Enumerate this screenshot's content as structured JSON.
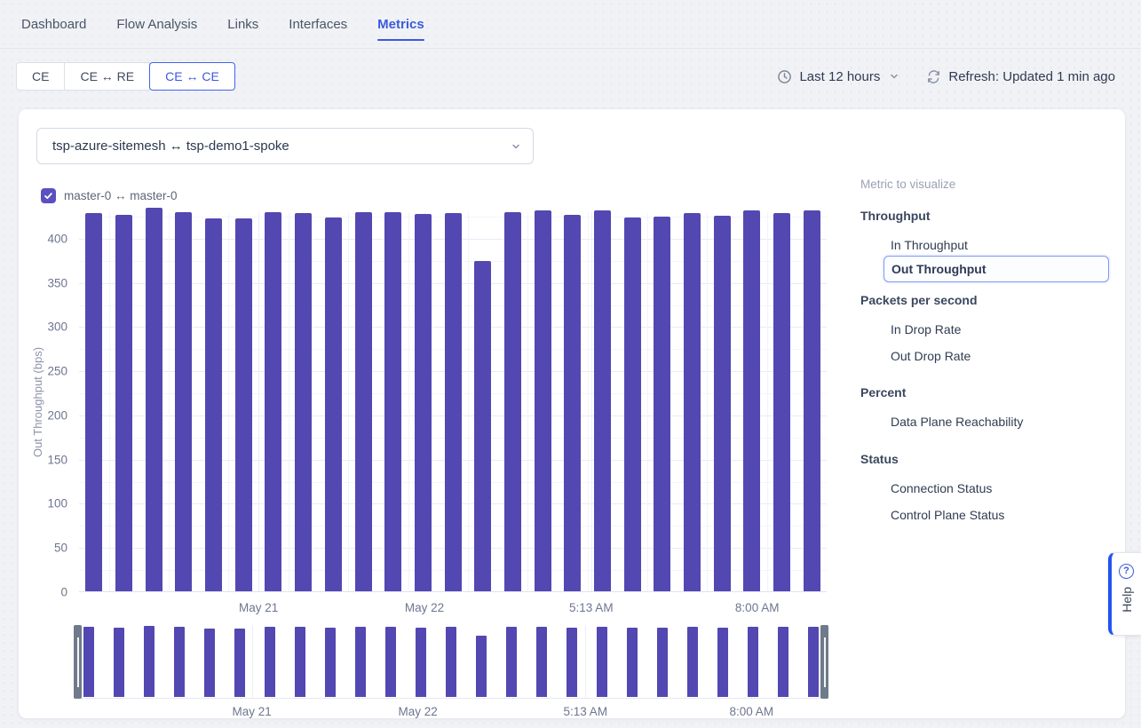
{
  "nav": {
    "tabs": [
      {
        "label": "Dashboard"
      },
      {
        "label": "Flow Analysis"
      },
      {
        "label": "Links"
      },
      {
        "label": "Interfaces"
      },
      {
        "label": "Metrics"
      }
    ],
    "active_index": 4
  },
  "filters": {
    "segments": [
      "CE",
      "CE ↔ RE",
      "CE ↔ CE"
    ],
    "selected_segment_index": 2,
    "time_range": "Last 12 hours",
    "refresh_label": "Refresh: Updated 1 min ago"
  },
  "panel": {
    "selector_value": "tsp-azure-sitemesh ↔ tsp-demo1-spoke",
    "legend": {
      "label": "master-0 ↔ master-0",
      "checked": true
    }
  },
  "sidebar": {
    "title": "Metric to visualize",
    "selected": "Out Throughput",
    "groups": [
      {
        "label": "Throughput",
        "items": [
          {
            "label": "In Throughput"
          },
          {
            "label": "Out Throughput"
          }
        ]
      },
      {
        "label": "Packets per second",
        "items": [
          {
            "label": "In Drop Rate"
          },
          {
            "label": "Out Drop Rate"
          }
        ]
      },
      {
        "label": "Percent",
        "items": [
          {
            "label": "Data Plane Reachability"
          }
        ]
      },
      {
        "label": "Status",
        "items": [
          {
            "label": "Connection Status"
          },
          {
            "label": "Control Plane Status"
          }
        ]
      }
    ]
  },
  "help": {
    "label": "Help"
  },
  "colors": {
    "accent_blue": "#3b5bdb",
    "bar_purple": "#5347b2",
    "checkbox_purple": "#5b50bf",
    "handle_gray": "#6f7a8a"
  },
  "chart_data": {
    "type": "bar",
    "title": "",
    "xlabel": "",
    "ylabel": "Out Throughput (bps)",
    "ylim": [
      0,
      430
    ],
    "yticks": [
      0,
      50,
      100,
      150,
      200,
      250,
      300,
      350,
      400
    ],
    "grid": true,
    "legend_position": "top-left",
    "xticks": [
      {
        "label": "May 21",
        "pos": 0.24
      },
      {
        "label": "May 22",
        "pos": 0.462
      },
      {
        "label": "5:13 AM",
        "pos": 0.685
      },
      {
        "label": "8:00 AM",
        "pos": 0.907
      }
    ],
    "series": [
      {
        "name": "master-0 ↔ master-0",
        "color": "#5347b2",
        "values": [
          428,
          426,
          434,
          429,
          422,
          422,
          429,
          428,
          423,
          429,
          429,
          427,
          428,
          374,
          429,
          431,
          426,
          431,
          423,
          424,
          428,
          425,
          431,
          428,
          431
        ]
      }
    ],
    "navigator": {
      "enabled": true,
      "xticks": [
        {
          "label": "May 21",
          "pos": 0.236
        },
        {
          "label": "May 22",
          "pos": 0.456
        },
        {
          "label": "5:13 AM",
          "pos": 0.678
        },
        {
          "label": "8:00 AM",
          "pos": 0.898
        }
      ]
    }
  }
}
